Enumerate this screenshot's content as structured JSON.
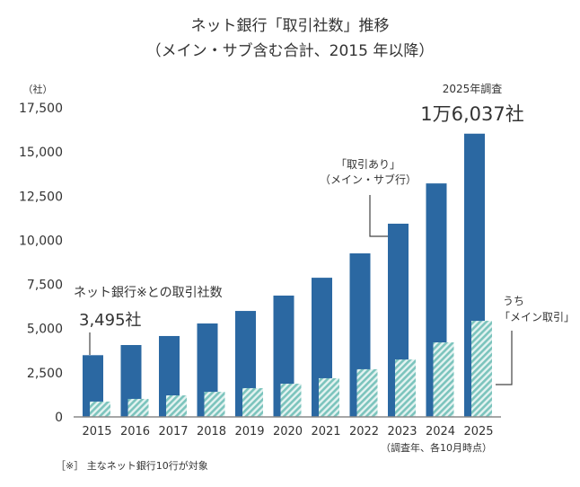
{
  "chart_data": {
    "type": "bar",
    "title": "ネット銀行「取引社数」推移",
    "subtitle": "（メイン・サブ含む合計、2015 年以降）",
    "ylabel": "（社）",
    "xnote": "（調査年、各10月時点）",
    "footnote": "［※］ 主なネット銀行10行が対象",
    "ylim": [
      0,
      17500
    ],
    "yticks": [
      "0",
      "2,500",
      "5,000",
      "7,500",
      "10,000",
      "12,500",
      "15,000",
      "17,500"
    ],
    "ytick_values": [
      0,
      2500,
      5000,
      7500,
      10000,
      12500,
      15000,
      17500
    ],
    "grid": false,
    "categories": [
      "2015",
      "2016",
      "2017",
      "2018",
      "2019",
      "2020",
      "2021",
      "2022",
      "2023",
      "2024",
      "2025"
    ],
    "series": [
      {
        "name": "「取引あり」（メイン・サブ行）",
        "color": "#2b68a2",
        "values": [
          3495,
          4070,
          4580,
          5290,
          6000,
          6870,
          7880,
          9260,
          10940,
          13220,
          16037
        ]
      },
      {
        "name": "うち「メイン取引」",
        "color": "#7cc4bd",
        "pattern": "diagonal-hatch",
        "values": [
          870,
          1020,
          1220,
          1420,
          1630,
          1880,
          2190,
          2700,
          3250,
          4220,
          5440
        ]
      }
    ],
    "annotations": {
      "first_label": "ネット銀行※との取引社数",
      "first_value": "3,495社",
      "total_label_1": "「取引あり」",
      "total_label_2": "（メイン・サブ行）",
      "main_label_1": "うち",
      "main_label_2": "「メイン取引」",
      "last_label": "2025年調査",
      "last_value": "1万6,037社"
    }
  }
}
